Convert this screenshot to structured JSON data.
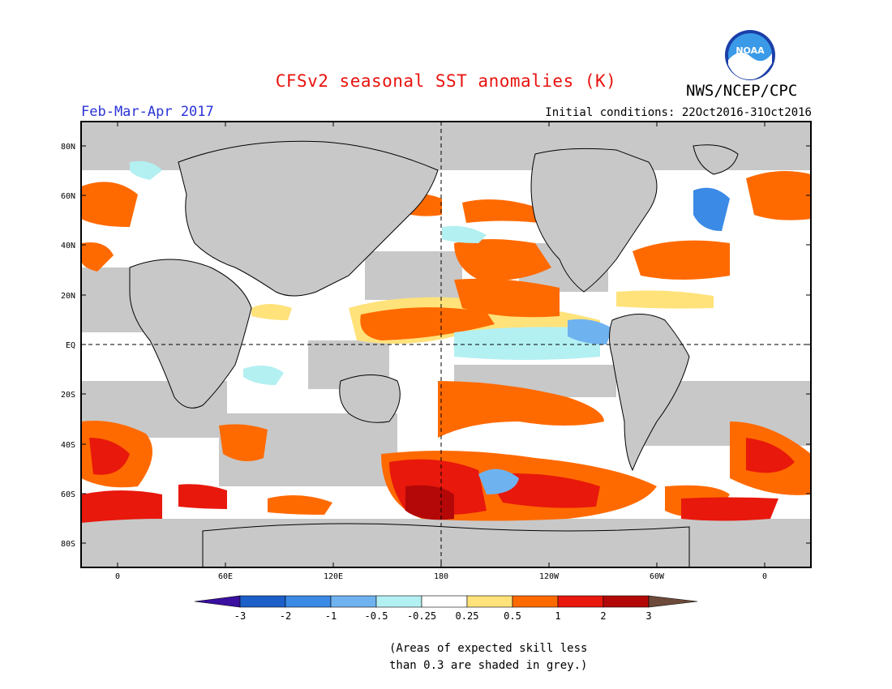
{
  "header": {
    "title": "CFSv2 seasonal SST anomalies (K)",
    "agency": "NWS/NCEP/CPC",
    "logo_text": "NOAA",
    "period": "Feb-Mar-Apr 2017",
    "initial_conditions": "Initial conditions: 22Oct2016-31Oct2016"
  },
  "map": {
    "projection": "cylindrical equidistant",
    "lat_labels": [
      "80N",
      "60N",
      "40N",
      "20N",
      "EQ",
      "20S",
      "40S",
      "60S",
      "80S"
    ],
    "lon_labels": [
      "0",
      "60E",
      "120E",
      "180",
      "120W",
      "60W",
      "0"
    ],
    "land_color": "#c8c8c8",
    "grey_skill_color": "#c8c8c8",
    "dashed_reference_lines": [
      "EQ",
      "180"
    ]
  },
  "colorbar": {
    "tick_labels": [
      "-3",
      "-2",
      "-1",
      "-0.5",
      "-0.25",
      "0.25",
      "0.5",
      "1",
      "2",
      "3"
    ],
    "colors": [
      "#3b0fa0",
      "#1c5fc8",
      "#3a8ae6",
      "#6fb2f0",
      "#b3f0f2",
      "#ffffff",
      "#ffe27a",
      "#ff6a00",
      "#e8180c",
      "#b40808",
      "#6e4a3a"
    ]
  },
  "note": {
    "line1": "(Areas of expected skill less",
    "line2": "than 0.3 are shaded in grey.)"
  }
}
